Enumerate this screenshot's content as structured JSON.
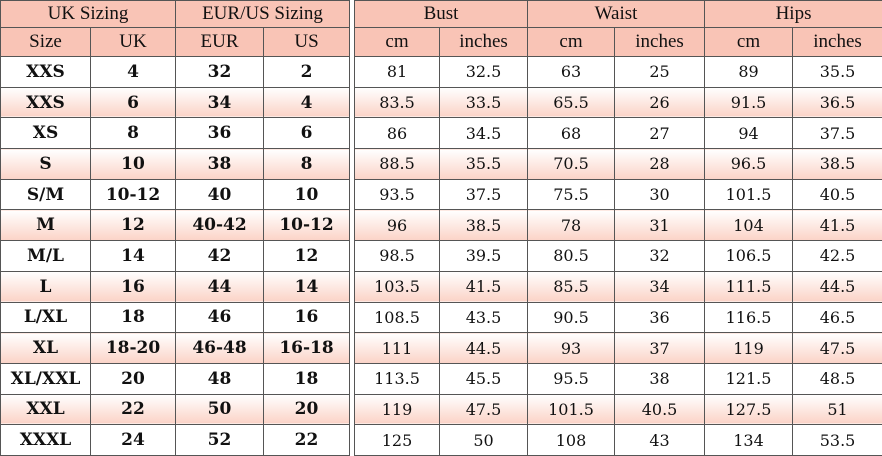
{
  "header": {
    "groups": [
      "UK Sizing",
      "EUR/US Sizing",
      "Bust",
      "Waist",
      "Hips"
    ],
    "columns": [
      "Size",
      "UK",
      "EUR",
      "US",
      "cm",
      "inches",
      "cm",
      "inches",
      "cm",
      "inches"
    ]
  },
  "colors": {
    "header_bg": "#f9c4b6",
    "alt_row": "#fbd3c7"
  },
  "rows": [
    [
      "XXS",
      "4",
      "32",
      "2",
      "81",
      "32.5",
      "63",
      "25",
      "89",
      "35.5"
    ],
    [
      "XXS",
      "6",
      "34",
      "4",
      "83.5",
      "33.5",
      "65.5",
      "26",
      "91.5",
      "36.5"
    ],
    [
      "XS",
      "8",
      "36",
      "6",
      "86",
      "34.5",
      "68",
      "27",
      "94",
      "37.5"
    ],
    [
      "S",
      "10",
      "38",
      "8",
      "88.5",
      "35.5",
      "70.5",
      "28",
      "96.5",
      "38.5"
    ],
    [
      "S/M",
      "10-12",
      "40",
      "10",
      "93.5",
      "37.5",
      "75.5",
      "30",
      "101.5",
      "40.5"
    ],
    [
      "M",
      "12",
      "40-42",
      "10-12",
      "96",
      "38.5",
      "78",
      "31",
      "104",
      "41.5"
    ],
    [
      "M/L",
      "14",
      "42",
      "12",
      "98.5",
      "39.5",
      "80.5",
      "32",
      "106.5",
      "42.5"
    ],
    [
      "L",
      "16",
      "44",
      "14",
      "103.5",
      "41.5",
      "85.5",
      "34",
      "111.5",
      "44.5"
    ],
    [
      "L/XL",
      "18",
      "46",
      "16",
      "108.5",
      "43.5",
      "90.5",
      "36",
      "116.5",
      "46.5"
    ],
    [
      "XL",
      "18-20",
      "46-48",
      "16-18",
      "111",
      "44.5",
      "93",
      "37",
      "119",
      "47.5"
    ],
    [
      "XL/XXL",
      "20",
      "48",
      "18",
      "113.5",
      "45.5",
      "95.5",
      "38",
      "121.5",
      "48.5"
    ],
    [
      "XXL",
      "22",
      "50",
      "20",
      "119",
      "47.5",
      "101.5",
      "40.5",
      "127.5",
      "51"
    ],
    [
      "XXXL",
      "24",
      "52",
      "22",
      "125",
      "50",
      "108",
      "43",
      "134",
      "53.5"
    ]
  ]
}
